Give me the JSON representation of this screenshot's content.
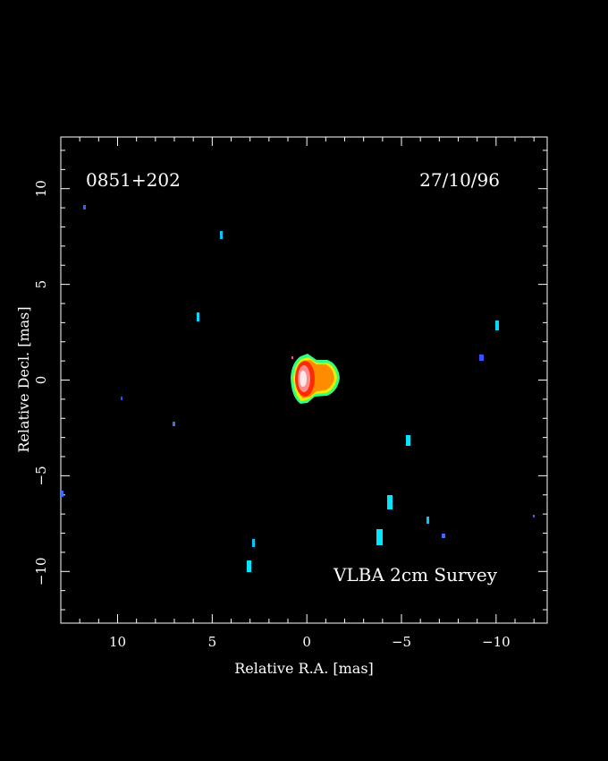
{
  "image": {
    "source_name": "0851+202",
    "date": "27/10/96",
    "survey_label": "VLBA 2cm Survey",
    "xlabel": "Relative R.A. [mas]",
    "ylabel": "Relative Decl. [mas]",
    "x_range": [
      13,
      -12.7
    ],
    "y_range": [
      -12.7,
      12.7
    ],
    "x_ticks": [
      "10",
      "5",
      "0",
      "−5",
      "−10"
    ],
    "x_tick_values": [
      10,
      5,
      0,
      -5,
      -10
    ],
    "y_ticks": [
      "−10",
      "−5",
      "0",
      "5",
      "10"
    ],
    "y_tick_values": [
      -10,
      -5,
      0,
      5,
      10
    ],
    "colors": {
      "background": "#000000",
      "frame": "#ffffff",
      "core_peak": "#ffd8d8",
      "core_red": "#ff2a00",
      "core_orange": "#ff8a00",
      "core_yellow": "#f0f000",
      "core_green": "#40ff40",
      "noise_cyan": "#00e6ff",
      "noise_blue": "#3060ff"
    }
  }
}
